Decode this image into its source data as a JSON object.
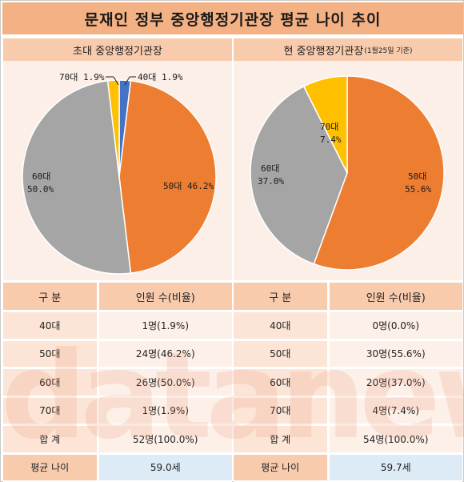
{
  "title": "문재인 정부 중앙행정기관장 평균 나이 추이",
  "left_panel": {
    "heading": "초대 중앙행정기관장",
    "slices": [
      {
        "label": "40대 1.9%",
        "color": "#4472c4"
      },
      {
        "label": "50대 46.2%",
        "color": "#ed7d31"
      },
      {
        "label": "60대",
        "label2": "50.0%",
        "color": "#a5a5a5"
      },
      {
        "label": "70대 1.9%",
        "color": "#ffc000"
      }
    ]
  },
  "right_panel": {
    "heading": "현 중앙행정기관장",
    "heading_note": "(1월25일 기준)",
    "slices": [
      {
        "label": "50대",
        "label2": "55.6%",
        "color": "#ed7d31"
      },
      {
        "label": "60대",
        "label2": "37.0%",
        "color": "#a5a5a5"
      },
      {
        "label": "70대",
        "label2": "7.4%",
        "color": "#ffc000"
      }
    ]
  },
  "table_left": {
    "header": [
      "구  분",
      "인원 수(비율)"
    ],
    "rows": [
      [
        "40대",
        "1명(1.9%)"
      ],
      [
        "50대",
        "24명(46.2%)"
      ],
      [
        "60대",
        "26명(50.0%)"
      ],
      [
        "70대",
        "1명(1.9%)"
      ]
    ],
    "total": [
      "합  계",
      "52명(100.0%)"
    ],
    "average": [
      "평균 나이",
      "59.0세"
    ]
  },
  "table_right": {
    "header": [
      "구  분",
      "인원 수(비율)"
    ],
    "rows": [
      [
        "40대",
        "0명(0.0%)"
      ],
      [
        "50대",
        "30명(55.6%)"
      ],
      [
        "60대",
        "20명(37.0%)"
      ],
      [
        "70대",
        "4명(7.4%)"
      ]
    ],
    "total": [
      "합  계",
      "54명(100.0%)"
    ],
    "average": [
      "평균 나이",
      "59.7세"
    ]
  },
  "watermark": "datanews",
  "chart_data": [
    {
      "type": "pie",
      "title": "초대 중앙행정기관장",
      "categories": [
        "40대",
        "50대",
        "60대",
        "70대"
      ],
      "values": [
        1.9,
        46.2,
        50.0,
        1.9
      ],
      "colors": [
        "#4472c4",
        "#ed7d31",
        "#a5a5a5",
        "#ffc000"
      ]
    },
    {
      "type": "pie",
      "title": "현 중앙행정기관장(1월25일 기준)",
      "categories": [
        "40대",
        "50대",
        "60대",
        "70대"
      ],
      "values": [
        0.0,
        55.6,
        37.0,
        7.4
      ],
      "colors": [
        "#4472c4",
        "#ed7d31",
        "#a5a5a5",
        "#ffc000"
      ]
    }
  ]
}
